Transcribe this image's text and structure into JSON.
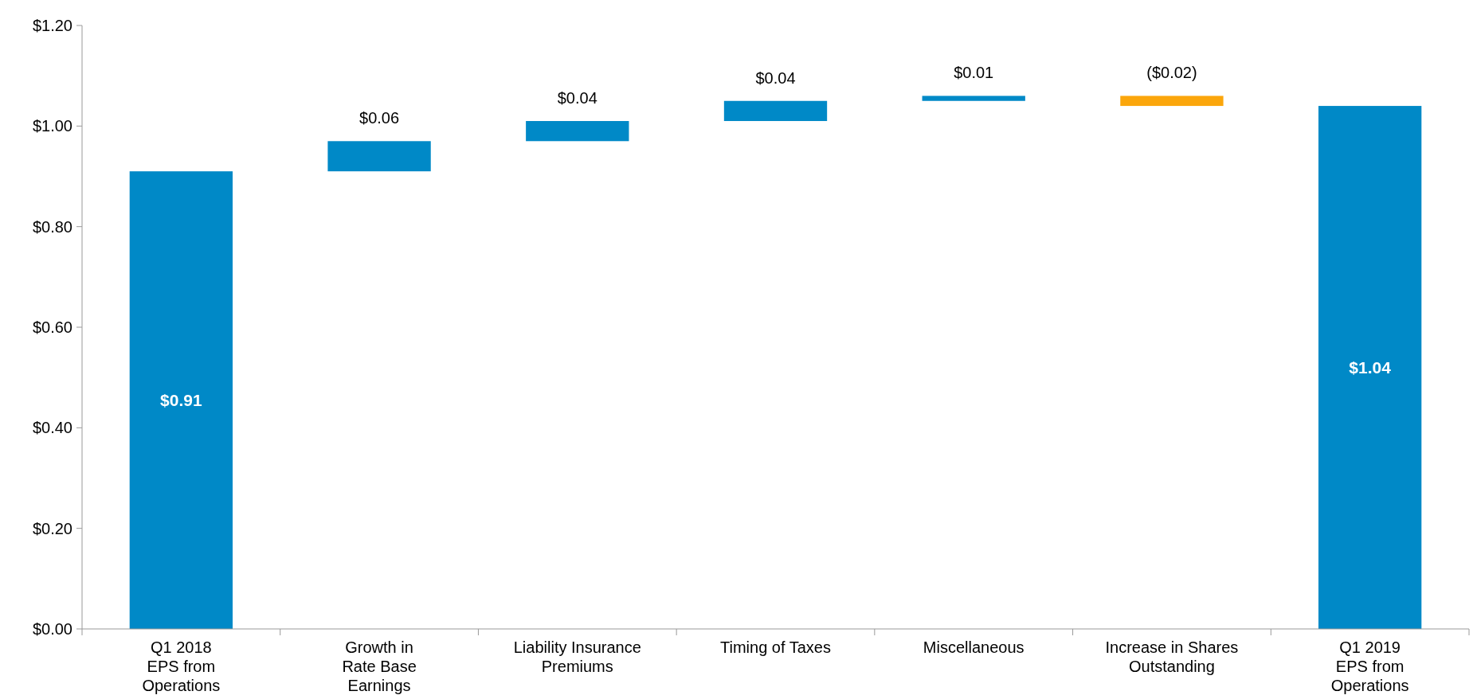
{
  "chart_data": {
    "type": "bar",
    "categories": [
      "Q1 2018\nEPS from\nOperations",
      "Growth in\nRate Base\nEarnings",
      "Liability Insurance\nPremiums",
      "Timing of Taxes",
      "Miscellaneous",
      "Increase in Shares\nOutstanding",
      "Q1 2019\nEPS from\nOperations"
    ],
    "values": [
      0.91,
      0.06,
      0.04,
      0.04,
      0.01,
      -0.02,
      1.04
    ],
    "base": [
      0,
      0.91,
      0.97,
      1.01,
      1.05,
      1.06,
      0
    ],
    "colors": [
      "#0089c7",
      "#0089c7",
      "#0089c7",
      "#0089c7",
      "#0089c7",
      "#fba60b",
      "#0089c7"
    ],
    "value_labels": [
      "$0.91",
      "$0.06",
      "$0.04",
      "$0.04",
      "$0.01",
      "($0.02)",
      "$1.04"
    ],
    "ylim": [
      0,
      1.2
    ],
    "yticks": [
      {
        "value": 0,
        "label": "$0.00"
      },
      {
        "value": 0.2,
        "label": "$0.20"
      },
      {
        "value": 0.4,
        "label": "$0.40"
      },
      {
        "value": 0.6,
        "label": "$0.60"
      },
      {
        "value": 0.8,
        "label": "$0.80"
      },
      {
        "value": 1,
        "label": "$1.00"
      },
      {
        "value": 1.2,
        "label": "$1.20"
      }
    ],
    "grid": false
  }
}
